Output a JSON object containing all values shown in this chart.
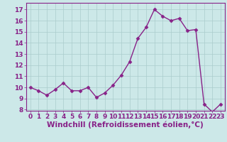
{
  "x": [
    0,
    1,
    2,
    3,
    4,
    5,
    6,
    7,
    8,
    9,
    10,
    11,
    12,
    13,
    14,
    15,
    16,
    17,
    18,
    19,
    20,
    21,
    22,
    23
  ],
  "y": [
    10.0,
    9.7,
    9.3,
    9.8,
    10.4,
    9.7,
    9.7,
    10.0,
    9.1,
    9.5,
    10.2,
    11.1,
    12.3,
    14.4,
    15.4,
    17.0,
    16.4,
    16.0,
    16.2,
    15.1,
    15.2,
    8.5,
    7.8,
    8.5
  ],
  "line_color": "#882288",
  "marker": "D",
  "markersize": 2.5,
  "linewidth": 1.0,
  "xlabel": "Windchill (Refroidissement éolien,°C)",
  "bg_color": "#cce8e8",
  "grid_color": "#aacccc",
  "xlim": [
    -0.5,
    23.5
  ],
  "ylim": [
    7.9,
    17.6
  ],
  "yticks": [
    8,
    9,
    10,
    11,
    12,
    13,
    14,
    15,
    16,
    17
  ],
  "xtick_labels": [
    "0",
    "1",
    "2",
    "3",
    "4",
    "5",
    "6",
    "7",
    "8",
    "9",
    "10",
    "11",
    "12",
    "13",
    "14",
    "15",
    "16",
    "17",
    "18",
    "19",
    "20",
    "21",
    "22",
    "23"
  ],
  "tick_fontsize": 6.5,
  "xlabel_fontsize": 7.5,
  "label_color": "#882288"
}
